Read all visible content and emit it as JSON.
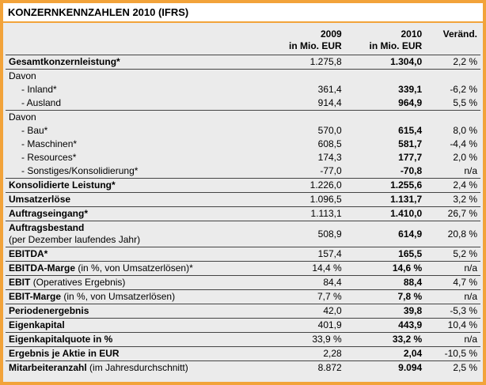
{
  "title": "KONZERNKENNZAHLEN 2010 (IFRS)",
  "header": [
    [
      "2009",
      "in Mio. EUR"
    ],
    [
      "2010",
      "in Mio. EUR"
    ],
    [
      "Veränd."
    ]
  ],
  "rows": [
    {
      "label": "Gesamtkonzernleistung*",
      "cells": [
        "1.275,8",
        "1.304,0",
        "2,2 %"
      ]
    },
    {
      "group": "Davon",
      "rows": [
        {
          "label": "- Inland*",
          "cells": [
            "361,4",
            "339,1",
            "-6,2 %"
          ]
        },
        {
          "label": "- Ausland",
          "cells": [
            "914,4",
            "964,9",
            "5,5 %"
          ]
        }
      ]
    },
    {
      "group": "Davon",
      "rows": [
        {
          "label": "- Bau*",
          "cells": [
            "570,0",
            "615,4",
            "8,0 %"
          ]
        },
        {
          "label": "- Maschinen*",
          "cells": [
            "608,5",
            "581,7",
            "-4,4 %"
          ]
        },
        {
          "label": "- Resources*",
          "cells": [
            "174,3",
            "177,7",
            "2,0 %"
          ]
        },
        {
          "label": "- Sonstiges/Konsolidierung*",
          "cells": [
            "-77,0",
            "-70,8",
            "n/a"
          ]
        }
      ]
    },
    {
      "label": "Konsolidierte Leistung*",
      "cells": [
        "1.226,0",
        "1.255,6",
        "2,4 %"
      ]
    },
    {
      "label": "Umsatzerlöse",
      "cells": [
        "1.096,5",
        "1.131,7",
        "3,2 %"
      ]
    },
    {
      "label": "Auftragseingang*",
      "cells": [
        "1.113,1",
        "1.410,0",
        "26,7 %"
      ]
    },
    {
      "label": "Auftragsbestand",
      "note": "(per Dezember laufendes Jahr)",
      "cells": [
        "508,9",
        "614,9",
        "20,8 %"
      ]
    },
    {
      "label": "EBITDA*",
      "cells": [
        "157,4",
        "165,5",
        "5,2 %"
      ]
    },
    {
      "label": "EBITDA-Marge",
      "note": "(in %, von Umsatzerlösen)*",
      "cells": [
        "14,4 %",
        "14,6 %",
        "n/a"
      ]
    },
    {
      "label": "EBIT",
      "note": "(Operatives Ergebnis)",
      "cells": [
        "84,4",
        "88,4",
        "4,7 %"
      ]
    },
    {
      "label": "EBIT-Marge",
      "note": "(in %, von Umsatzerlösen)",
      "cells": [
        "7,7 %",
        "7,8 %",
        "n/a"
      ]
    },
    {
      "label": "Periodenergebnis",
      "cells": [
        "42,0",
        "39,8",
        "-5,3 %"
      ]
    },
    {
      "label": "Eigenkapital",
      "cells": [
        "401,9",
        "443,9",
        "10,4 %"
      ]
    },
    {
      "label": "Eigenkapitalquote in %",
      "cells": [
        "33,9 %",
        "33,2 %",
        "n/a"
      ]
    },
    {
      "label": "Ergebnis je Aktie in EUR",
      "cells": [
        "2,28",
        "2,04",
        "-10,5 %"
      ]
    },
    {
      "label": "Mitarbeiteranzahl",
      "note": "(im Jahresdurchschnitt)",
      "cells": [
        "8.872",
        "9.094",
        "2,5 %"
      ]
    }
  ]
}
